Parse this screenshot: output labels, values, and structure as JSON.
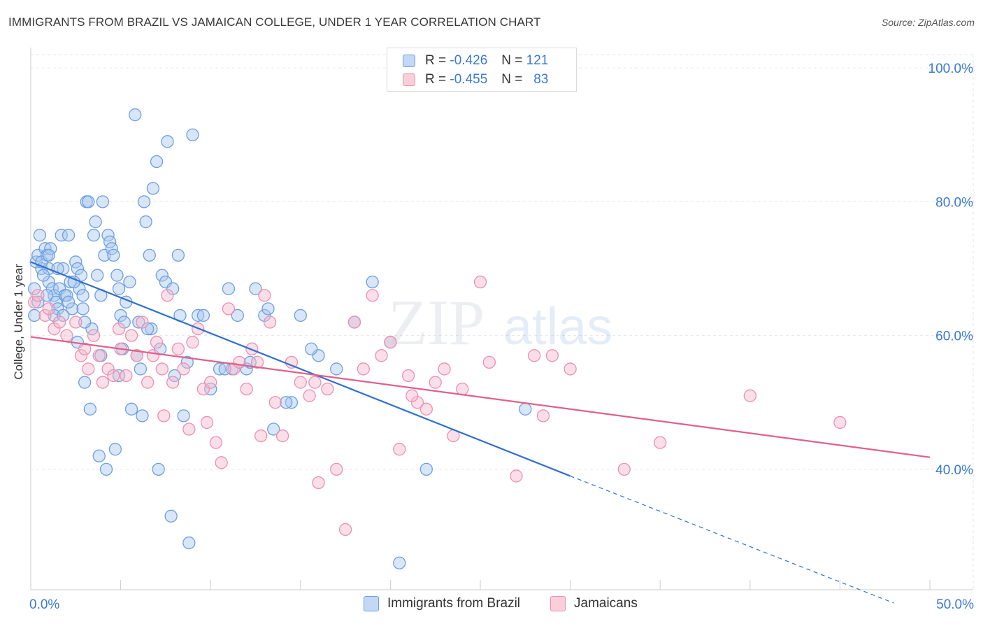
{
  "header": {
    "title": "IMMIGRANTS FROM BRAZIL VS JAMAICAN COLLEGE, UNDER 1 YEAR CORRELATION CHART",
    "source": "Source: ZipAtlas.com"
  },
  "legend": {
    "rows": [
      {
        "r_label": "R =",
        "r_value": "-0.426",
        "n_label": "N =",
        "n_value": "121"
      },
      {
        "r_label": "R =",
        "r_value": "-0.455",
        "n_label": "N =",
        "n_value": "83"
      }
    ]
  },
  "watermark": {
    "zip": "ZIP",
    "atlas": "atlas"
  },
  "colors": {
    "blue_fill": "#a9c8f0",
    "blue_stroke": "#6d9fe0",
    "blue_line": "#2f6fd0",
    "pink_fill": "#f6b9cc",
    "pink_stroke": "#ee8fae",
    "pink_line": "#e0608a",
    "grid": "#e6e6e6",
    "tick_label": "#3a78d4"
  },
  "chart_data": {
    "type": "scatter",
    "title": "IMMIGRANTS FROM BRAZIL VS JAMAICAN COLLEGE, UNDER 1 YEAR CORRELATION CHART",
    "xlabel": "",
    "ylabel": "College, Under 1 year",
    "xlim": [
      0,
      50
    ],
    "ylim": [
      22,
      102
    ],
    "x_tick_labels": [
      "0.0%",
      "50.0%"
    ],
    "y_ticks": [
      40,
      60,
      80,
      100
    ],
    "y_tick_labels": [
      "40.0%",
      "60.0%",
      "80.0%",
      "100.0%"
    ],
    "grid": true,
    "legend_position": "top-center",
    "series": [
      {
        "name": "Immigrants from Brazil",
        "color": "#a9c8f0",
        "r": -0.426,
        "n": 121,
        "trend": {
          "x0": 0,
          "y0": 71,
          "x1": 30,
          "y1": 39,
          "dash_to_x": 48,
          "dash_to_y": 20
        },
        "points": [
          [
            0.2,
            67
          ],
          [
            0.2,
            63
          ],
          [
            0.3,
            71
          ],
          [
            0.4,
            72
          ],
          [
            0.5,
            75
          ],
          [
            0.6,
            70
          ],
          [
            0.8,
            73
          ],
          [
            0.9,
            72
          ],
          [
            1.0,
            70
          ],
          [
            1.0,
            68
          ],
          [
            1.2,
            67
          ],
          [
            1.3,
            66
          ],
          [
            1.4,
            65
          ],
          [
            1.5,
            64
          ],
          [
            1.6,
            67
          ],
          [
            1.7,
            75
          ],
          [
            1.8,
            70
          ],
          [
            1.9,
            66
          ],
          [
            2.0,
            66
          ],
          [
            2.1,
            75
          ],
          [
            2.2,
            68
          ],
          [
            2.3,
            64
          ],
          [
            2.5,
            71
          ],
          [
            2.6,
            70
          ],
          [
            2.7,
            67
          ],
          [
            2.8,
            69
          ],
          [
            2.9,
            66
          ],
          [
            3.0,
            53
          ],
          [
            3.1,
            80
          ],
          [
            3.2,
            80
          ],
          [
            3.5,
            75
          ],
          [
            3.6,
            77
          ],
          [
            3.7,
            69
          ],
          [
            3.9,
            66
          ],
          [
            4.0,
            80
          ],
          [
            4.1,
            72
          ],
          [
            4.3,
            75
          ],
          [
            4.4,
            74
          ],
          [
            4.5,
            73
          ],
          [
            4.6,
            72
          ],
          [
            4.8,
            69
          ],
          [
            4.9,
            67
          ],
          [
            5.0,
            63
          ],
          [
            5.2,
            62
          ],
          [
            5.3,
            65
          ],
          [
            5.5,
            68
          ],
          [
            5.8,
            93
          ],
          [
            6.0,
            62
          ],
          [
            6.3,
            80
          ],
          [
            6.4,
            77
          ],
          [
            6.6,
            72
          ],
          [
            6.7,
            61
          ],
          [
            6.8,
            82
          ],
          [
            7.0,
            86
          ],
          [
            7.3,
            69
          ],
          [
            7.5,
            68
          ],
          [
            7.6,
            89
          ],
          [
            7.9,
            67
          ],
          [
            8.0,
            54
          ],
          [
            8.2,
            72
          ],
          [
            8.5,
            48
          ],
          [
            8.7,
            56
          ],
          [
            9.0,
            90
          ],
          [
            9.3,
            63
          ],
          [
            10.0,
            52
          ],
          [
            10.5,
            55
          ],
          [
            11.0,
            67
          ],
          [
            11.5,
            63
          ],
          [
            12.0,
            55
          ],
          [
            12.5,
            67
          ],
          [
            13.0,
            63
          ],
          [
            13.5,
            46
          ],
          [
            14.5,
            50
          ],
          [
            15.0,
            63
          ],
          [
            16.0,
            57
          ],
          [
            17.0,
            55
          ],
          [
            18.0,
            62
          ],
          [
            19.0,
            68
          ],
          [
            20.0,
            59
          ],
          [
            22.0,
            40
          ],
          [
            3.3,
            49
          ],
          [
            3.8,
            42
          ],
          [
            4.2,
            40
          ],
          [
            4.7,
            43
          ],
          [
            5.6,
            49
          ],
          [
            6.2,
            48
          ],
          [
            7.1,
            40
          ],
          [
            7.8,
            33
          ],
          [
            8.8,
            29
          ],
          [
            20.5,
            26
          ],
          [
            1.1,
            73
          ],
          [
            1.5,
            70
          ],
          [
            2.4,
            68
          ],
          [
            0.7,
            69
          ],
          [
            0.9,
            66
          ],
          [
            2.9,
            64
          ],
          [
            3.4,
            61
          ],
          [
            5.1,
            58
          ],
          [
            5.9,
            57
          ],
          [
            7.2,
            58
          ],
          [
            9.6,
            63
          ],
          [
            11.2,
            55
          ],
          [
            12.2,
            56
          ],
          [
            14.2,
            50
          ],
          [
            27.5,
            49
          ],
          [
            1.3,
            63
          ],
          [
            1.8,
            63
          ],
          [
            2.6,
            59
          ],
          [
            3.9,
            57
          ],
          [
            4.9,
            54
          ],
          [
            6.5,
            61
          ],
          [
            8.3,
            63
          ],
          [
            10.8,
            55
          ],
          [
            13.2,
            64
          ],
          [
            15.6,
            58
          ],
          [
            0.4,
            65
          ],
          [
            0.6,
            71
          ],
          [
            1.0,
            72
          ],
          [
            2.1,
            65
          ],
          [
            3.0,
            62
          ],
          [
            6.1,
            55
          ]
        ]
      },
      {
        "name": "Jamaicans",
        "color": "#f6b9cc",
        "r": -0.455,
        "n": 83,
        "trend": {
          "x0": 0,
          "y0": 59.8,
          "x1": 50,
          "y1": 41.8
        },
        "points": [
          [
            0.2,
            65
          ],
          [
            0.4,
            66
          ],
          [
            0.8,
            63
          ],
          [
            1.0,
            64
          ],
          [
            1.3,
            61
          ],
          [
            1.6,
            62
          ],
          [
            2.0,
            60
          ],
          [
            2.5,
            62
          ],
          [
            2.8,
            57
          ],
          [
            3.0,
            58
          ],
          [
            3.5,
            60
          ],
          [
            3.8,
            57
          ],
          [
            4.0,
            53
          ],
          [
            4.3,
            55
          ],
          [
            4.6,
            54
          ],
          [
            5.0,
            58
          ],
          [
            5.3,
            54
          ],
          [
            5.6,
            60
          ],
          [
            5.9,
            57
          ],
          [
            6.2,
            62
          ],
          [
            6.5,
            53
          ],
          [
            6.8,
            57
          ],
          [
            7.0,
            59
          ],
          [
            7.3,
            55
          ],
          [
            7.6,
            66
          ],
          [
            7.9,
            53
          ],
          [
            8.2,
            58
          ],
          [
            8.5,
            55
          ],
          [
            8.8,
            46
          ],
          [
            9.0,
            59
          ],
          [
            9.3,
            61
          ],
          [
            9.6,
            52
          ],
          [
            10.0,
            53
          ],
          [
            10.3,
            44
          ],
          [
            10.6,
            41
          ],
          [
            11.0,
            64
          ],
          [
            11.3,
            55
          ],
          [
            11.6,
            56
          ],
          [
            12.0,
            52
          ],
          [
            12.3,
            58
          ],
          [
            12.6,
            56
          ],
          [
            13.0,
            66
          ],
          [
            13.3,
            62
          ],
          [
            13.6,
            50
          ],
          [
            14.0,
            45
          ],
          [
            14.5,
            56
          ],
          [
            15.0,
            53
          ],
          [
            15.5,
            51
          ],
          [
            16.0,
            38
          ],
          [
            16.5,
            52
          ],
          [
            17.0,
            40
          ],
          [
            17.5,
            31
          ],
          [
            18.0,
            62
          ],
          [
            18.5,
            55
          ],
          [
            19.0,
            66
          ],
          [
            20.0,
            59
          ],
          [
            20.5,
            43
          ],
          [
            21.0,
            54
          ],
          [
            21.5,
            50
          ],
          [
            22.0,
            49
          ],
          [
            22.5,
            53
          ],
          [
            23.0,
            55
          ],
          [
            23.5,
            45
          ],
          [
            24.0,
            52
          ],
          [
            25.5,
            56
          ],
          [
            27.0,
            39
          ],
          [
            28.0,
            57
          ],
          [
            29.0,
            57
          ],
          [
            30.0,
            55
          ],
          [
            35.0,
            44
          ],
          [
            40.0,
            51
          ],
          [
            45.0,
            47
          ],
          [
            25.0,
            68
          ],
          [
            3.2,
            55
          ],
          [
            4.9,
            61
          ],
          [
            7.4,
            48
          ],
          [
            9.8,
            47
          ],
          [
            12.8,
            45
          ],
          [
            15.8,
            53
          ],
          [
            19.5,
            57
          ],
          [
            21.2,
            51
          ],
          [
            28.5,
            48
          ],
          [
            33.0,
            40
          ]
        ]
      }
    ]
  },
  "bottom_legend": [
    {
      "label": "Immigrants from Brazil"
    },
    {
      "label": "Jamaicans"
    }
  ]
}
